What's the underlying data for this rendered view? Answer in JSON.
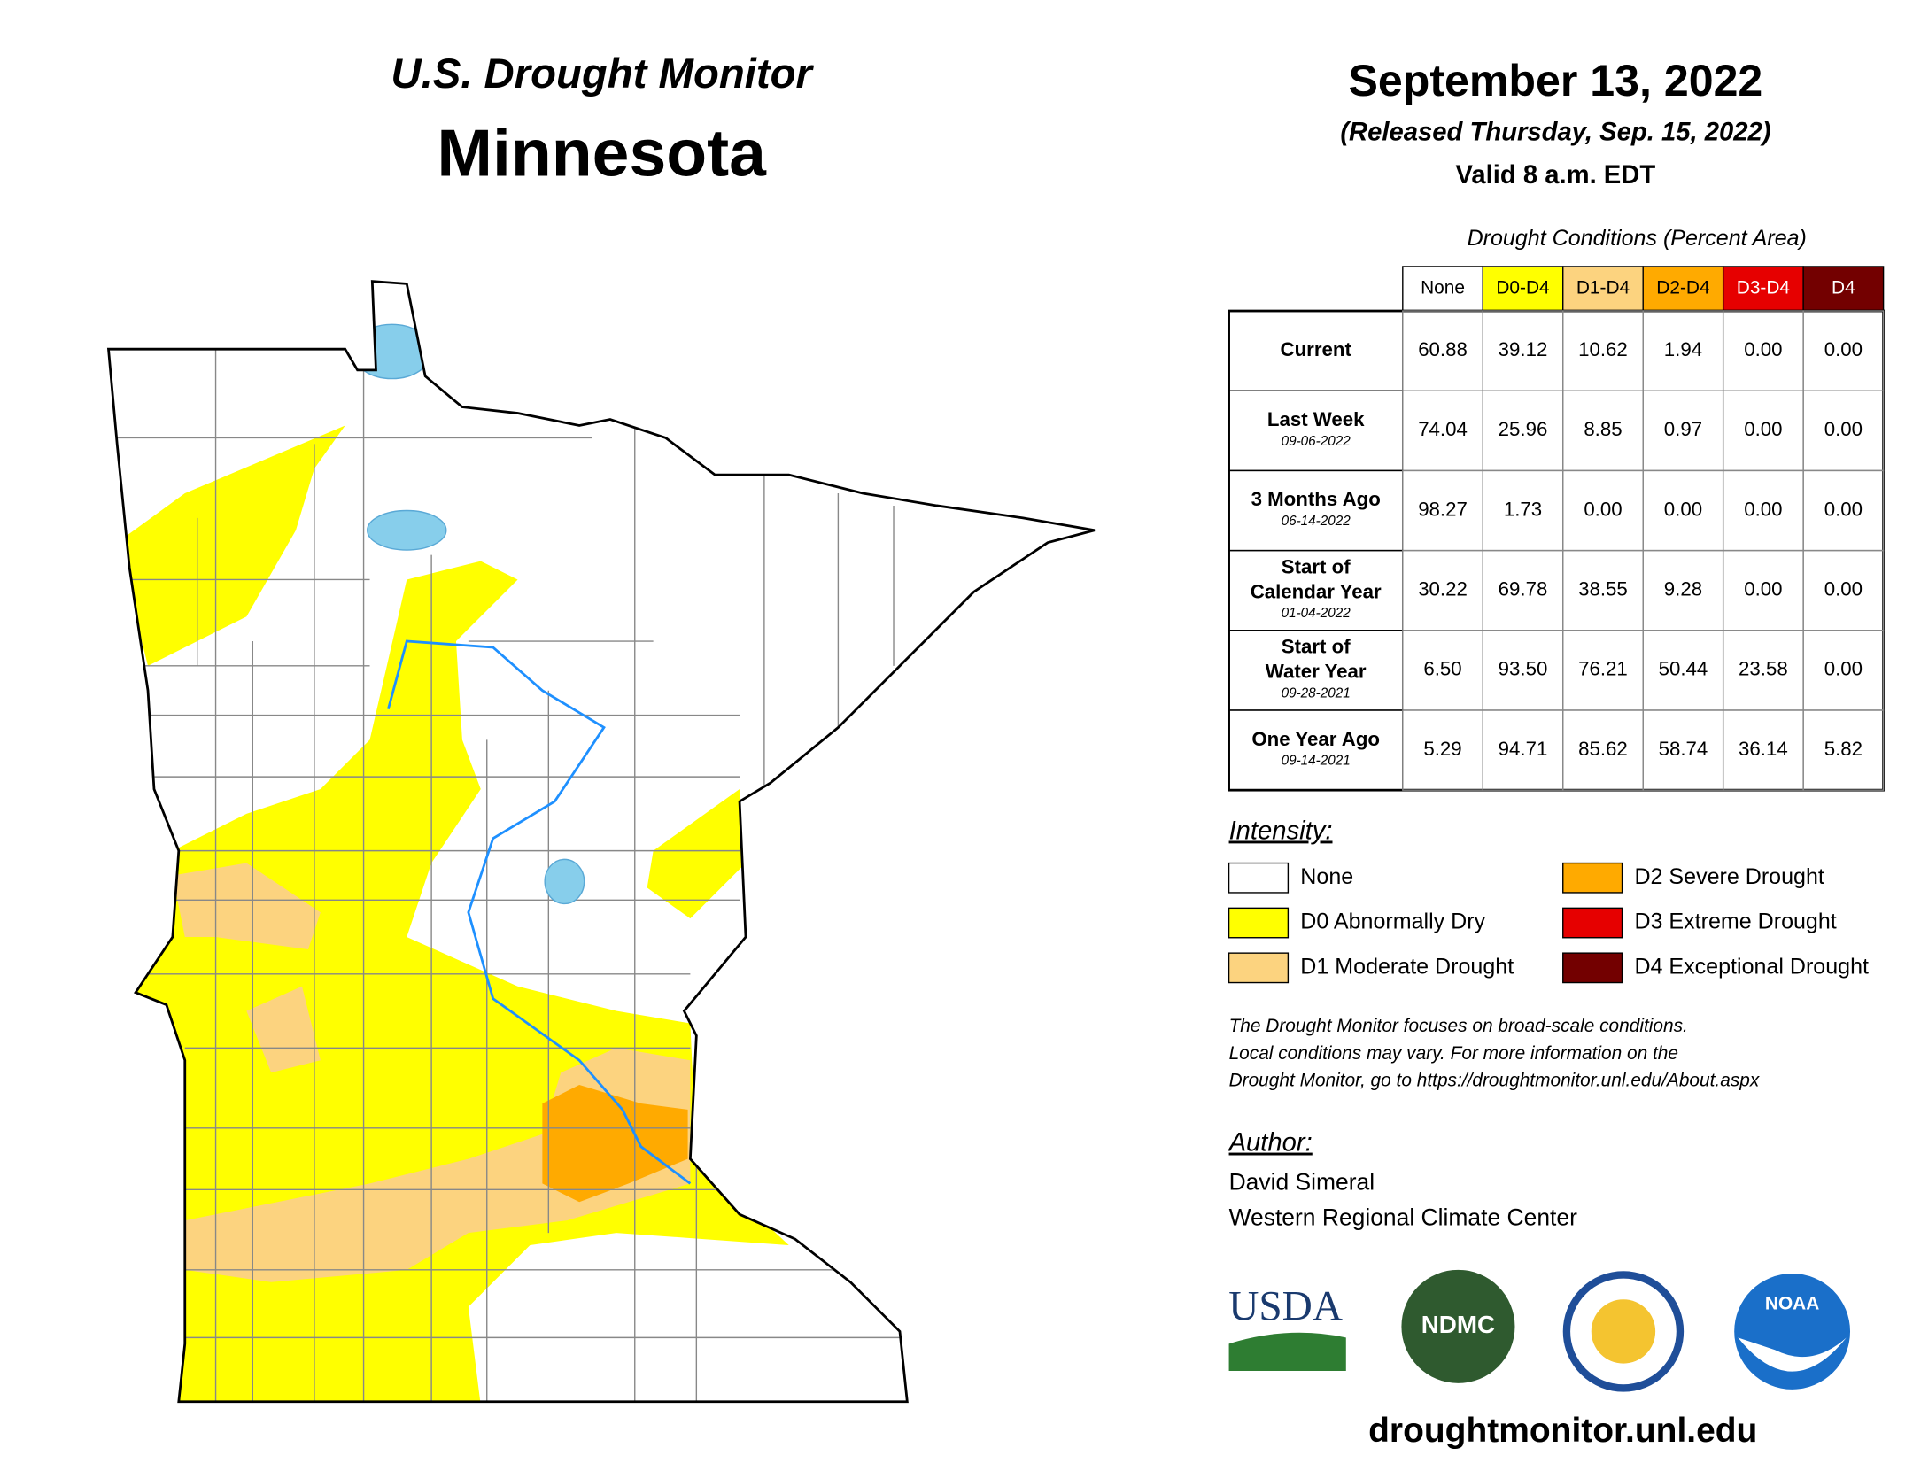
{
  "header": {
    "title": "U.S. Drought Monitor",
    "state": "Minnesota",
    "date": "September 13, 2022",
    "released": "(Released Thursday, Sep. 15, 2022)",
    "valid": "Valid 8 a.m. EDT"
  },
  "table": {
    "caption": "Drought Conditions (Percent Area)",
    "columns": [
      {
        "label": "None",
        "color": "#ffffff"
      },
      {
        "label": "D0-D4",
        "color": "#ffff00"
      },
      {
        "label": "D1-D4",
        "color": "#fcd37f"
      },
      {
        "label": "D2-D4",
        "color": "#ffaa00"
      },
      {
        "label": "D3-D4",
        "color": "#e60000"
      },
      {
        "label": "D4",
        "color": "#730000"
      }
    ],
    "rows": [
      {
        "label": [
          "Current"
        ],
        "values": [
          "60.88",
          "39.12",
          "10.62",
          "1.94",
          "0.00",
          "0.00"
        ]
      },
      {
        "label": [
          "Last Week"
        ],
        "date": "09-06-2022",
        "values": [
          "74.04",
          "25.96",
          "8.85",
          "0.97",
          "0.00",
          "0.00"
        ]
      },
      {
        "label": [
          "3 Months Ago"
        ],
        "date": "06-14-2022",
        "values": [
          "98.27",
          "1.73",
          "0.00",
          "0.00",
          "0.00",
          "0.00"
        ]
      },
      {
        "label": [
          "Start of",
          "Calendar Year"
        ],
        "date": "01-04-2022",
        "values": [
          "30.22",
          "69.78",
          "38.55",
          "9.28",
          "0.00",
          "0.00"
        ]
      },
      {
        "label": [
          "Start of",
          "Water Year"
        ],
        "date": "09-28-2021",
        "values": [
          "6.50",
          "93.50",
          "76.21",
          "50.44",
          "23.58",
          "0.00"
        ]
      },
      {
        "label": [
          "One Year Ago"
        ],
        "date": "09-14-2021",
        "values": [
          "5.29",
          "94.71",
          "85.62",
          "58.74",
          "36.14",
          "5.82"
        ]
      }
    ]
  },
  "legend": {
    "title": "Intensity:",
    "items": [
      {
        "label": "None",
        "color": "#ffffff"
      },
      {
        "label": "D0 Abnormally Dry",
        "color": "#ffff00"
      },
      {
        "label": "D1 Moderate Drought",
        "color": "#fcd37f"
      },
      {
        "label": "D2 Severe Drought",
        "color": "#ffaa00"
      },
      {
        "label": "D3 Extreme Drought",
        "color": "#e60000"
      },
      {
        "label": "D4 Exceptional Drought",
        "color": "#730000"
      }
    ]
  },
  "note": [
    "The Drought Monitor focuses on broad-scale conditions.",
    "Local conditions may vary. For more information on the",
    "Drought Monitor, go to https://droughtmonitor.unl.edu/About.aspx"
  ],
  "author": {
    "label": "Author:",
    "name": "David Simeral",
    "org": "Western Regional Climate Center"
  },
  "logos": [
    "USDA",
    "NDMC",
    "NOAA"
  ],
  "url": "droughtmonitor.unl.edu"
}
